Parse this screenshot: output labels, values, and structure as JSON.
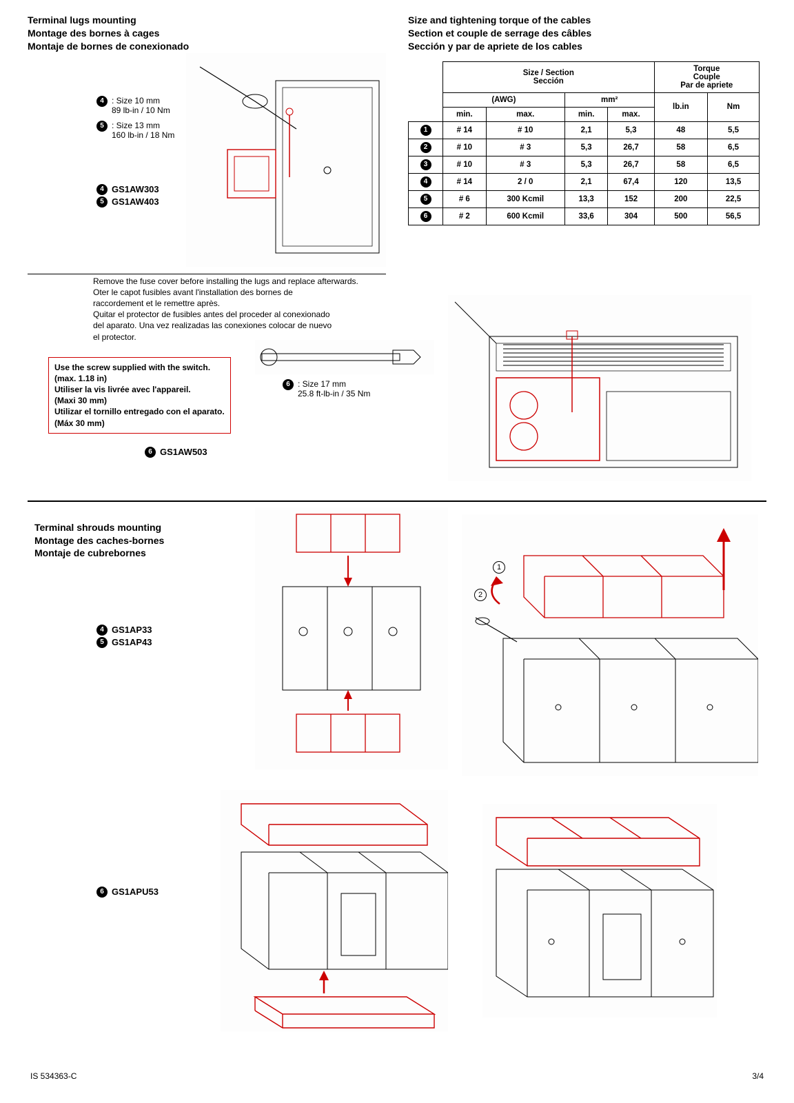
{
  "top": {
    "left_heading": [
      "Terminal lugs mounting",
      "Montage des bornes à cages",
      "Montaje de bornes de conexionado"
    ],
    "right_heading": [
      "Size and tightening torque of the cables",
      "Section et couple de serrage des câbles",
      "Sección y par de apriete de los cables"
    ],
    "callouts": {
      "c4_line1": ": Size 10 mm",
      "c4_line2": "89 lb-in / 10 Nm",
      "c5_line1": ": Size 13 mm",
      "c5_line2": "160 lb-in / 18 Nm",
      "c6_line1": ": Size 17 mm",
      "c6_line2": "25.8 ft-lb-in / 35 Nm"
    },
    "parts_a": {
      "p4": "GS1AW303",
      "p5": "GS1AW403"
    },
    "parts_b": {
      "p6": "GS1AW503"
    },
    "note_lines": [
      "Remove the fuse cover before installing the lugs and replace afterwards.",
      "Oter le capot fusibles avant l'installation des bornes de",
      "raccordement et le remettre après.",
      "Quitar el protector de fusibles antes del proceder al conexionado",
      "del aparato. Una vez realizadas las conexiones colocar de nuevo",
      "el protector."
    ],
    "redbox_lines": [
      "Use the screw supplied with the switch.",
      "(max. 1.18 in)",
      "Utiliser la vis livrée avec l'appareil.",
      "(Maxi 30 mm)",
      "Utilizar el tornillo entregado con el aparato.",
      "(Máx 30 mm)"
    ]
  },
  "table": {
    "group1_top": "Size / Section",
    "group1_bot": "Sección",
    "group2_l1": "Torque",
    "group2_l2": "Couple",
    "group2_l3": "Par de apriete",
    "sub_awg": "(AWG)",
    "sub_mm2": "mm²",
    "min": "min.",
    "max": "max.",
    "lbin": "lb.in",
    "nm": "Nm",
    "rows": [
      {
        "n": "1",
        "c": [
          "# 14",
          "# 10",
          "2,1",
          "5,3",
          "48",
          "5,5"
        ]
      },
      {
        "n": "2",
        "c": [
          "# 10",
          "# 3",
          "5,3",
          "26,7",
          "58",
          "6,5"
        ]
      },
      {
        "n": "3",
        "c": [
          "# 10",
          "# 3",
          "5,3",
          "26,7",
          "58",
          "6,5"
        ]
      },
      {
        "n": "4",
        "c": [
          "# 14",
          "2 / 0",
          "2,1",
          "67,4",
          "120",
          "13,5"
        ]
      },
      {
        "n": "5",
        "c": [
          "# 6",
          "300 Kcmil",
          "13,3",
          "152",
          "200",
          "22,5"
        ]
      },
      {
        "n": "6",
        "c": [
          "# 2",
          "600 Kcmil",
          "33,6",
          "304",
          "500",
          "56,5"
        ]
      }
    ]
  },
  "bottom": {
    "heading": [
      "Terminal shrouds mounting",
      "Montage des caches-bornes",
      "Montaje de cubrebornes"
    ],
    "parts_a": {
      "p4": "GS1AP33",
      "p5": "GS1AP43"
    },
    "parts_b": {
      "p6": "GS1APU53"
    },
    "step1": "1",
    "step2": "2",
    "arrow_color": "#d00000"
  },
  "style": {
    "red": "#d00000",
    "line_red": "#d00000",
    "black": "#000000",
    "page_bg": "#ffffff"
  },
  "footer": {
    "left": "IS 534363-C",
    "right": "3/4"
  }
}
